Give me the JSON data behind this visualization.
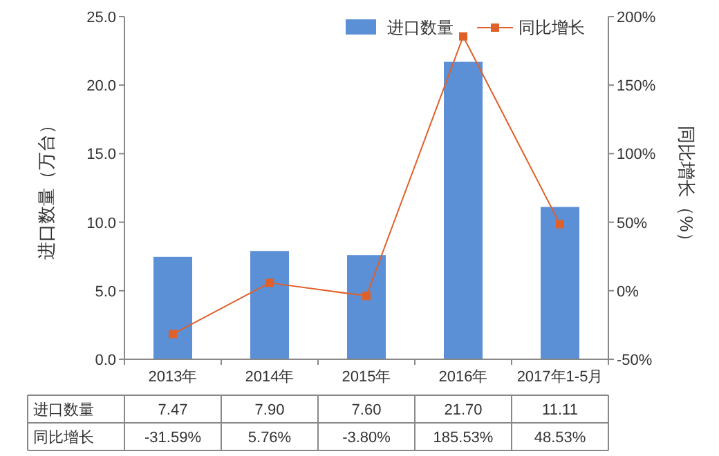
{
  "chart_data": {
    "type": "bar",
    "categories": [
      "2013年",
      "2014年",
      "2015年",
      "2016年",
      "2017年1-5月"
    ],
    "ylabel": "进口数量（万台）",
    "y2label": "同比增长（%）",
    "ylim": [
      0,
      25
    ],
    "yticks": [
      {
        "value": 0,
        "label": "0.0"
      },
      {
        "value": 5,
        "label": "5.0"
      },
      {
        "value": 10,
        "label": "10.0"
      },
      {
        "value": 15,
        "label": "15.0"
      },
      {
        "value": 20,
        "label": "20.0"
      },
      {
        "value": 25,
        "label": "25.0"
      }
    ],
    "y2lim": [
      -50,
      200
    ],
    "y2ticks": [
      {
        "value": -50,
        "label": "-50%"
      },
      {
        "value": 0,
        "label": "0%"
      },
      {
        "value": 50,
        "label": "50%"
      },
      {
        "value": 100,
        "label": "100%"
      },
      {
        "value": 150,
        "label": "150%"
      },
      {
        "value": 200,
        "label": "200%"
      }
    ],
    "legend": "top right",
    "data_labels": true,
    "series": [
      {
        "name": "进口数量",
        "color": "#5b8fd6",
        "values": [
          7.47,
          7.9,
          7.6,
          21.7,
          11.11
        ],
        "value_labels": [
          "7.47",
          "7.90",
          "7.60",
          "21.70",
          "11.11"
        ]
      },
      {
        "name": "同比增长",
        "type": "line",
        "axis": "y2",
        "color": "#e0602a",
        "marker": "square",
        "values": [
          -31.59,
          5.76,
          -3.8,
          185.53,
          48.53
        ],
        "value_labels": [
          "-31.59%",
          "5.76%",
          "-3.80%",
          "185.53%",
          "48.53%"
        ]
      }
    ]
  }
}
